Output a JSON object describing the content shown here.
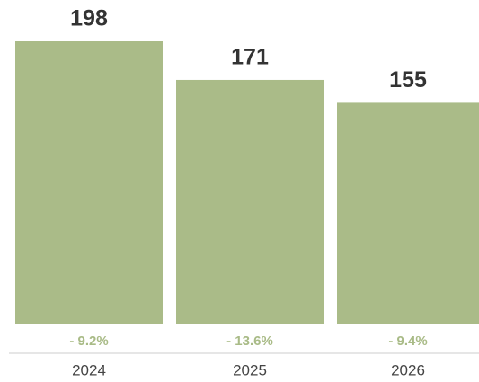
{
  "chart_data": {
    "type": "bar",
    "categories": [
      "2024",
      "2025",
      "2026"
    ],
    "values": [
      198,
      171,
      155
    ],
    "change_labels": [
      "- 9.2%",
      "- 13.6%",
      "- 9.4%"
    ],
    "color": "#aabb88"
  }
}
